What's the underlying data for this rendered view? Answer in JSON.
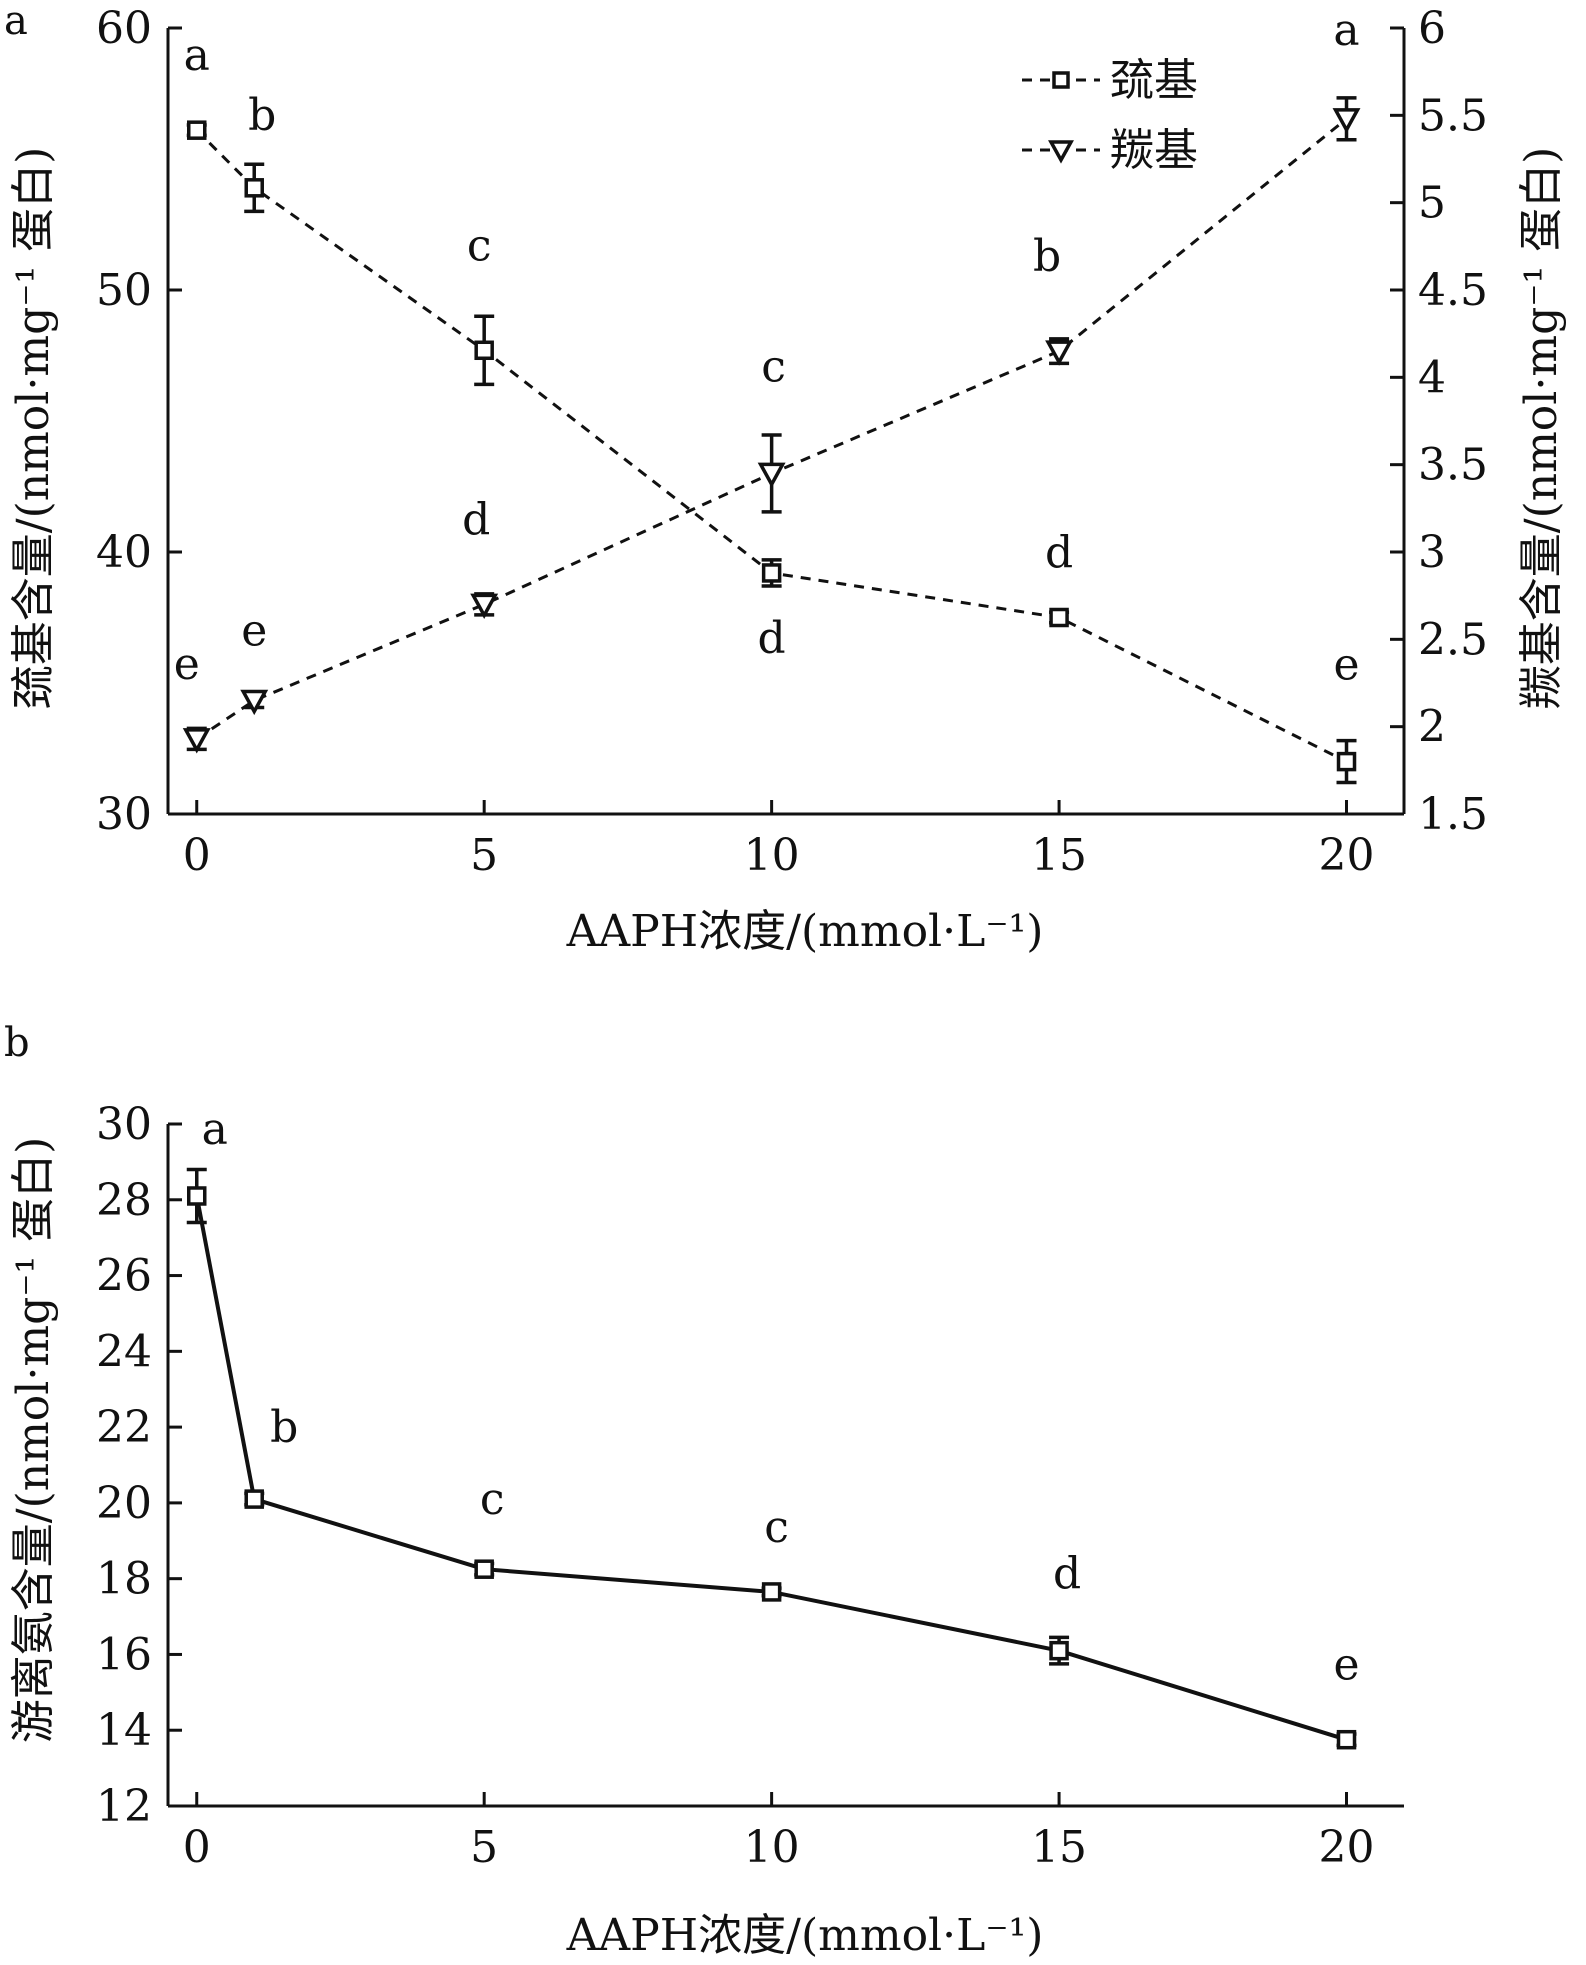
{
  "chart_data": [
    {
      "panel": "a",
      "type": "line",
      "xlabel": "AAPH浓度/(mmol·L⁻¹)",
      "ylabel": "巯基含量/(nmol·mg⁻¹ 蛋白)",
      "ylabel_right": "羰基含量/(nmol·mg⁻¹ 蛋白)",
      "xlim": [
        -0.5,
        21
      ],
      "ylim": [
        30,
        60
      ],
      "ylim_right": [
        1.5,
        6
      ],
      "x_ticks": [
        "0",
        "5",
        "10",
        "15",
        "20"
      ],
      "y_ticks": [
        "30",
        "40",
        "50",
        "60"
      ],
      "y_ticks_right": [
        "1.5",
        "2",
        "2.5",
        "3",
        "3.5",
        "4",
        "4.5",
        "5",
        "5.5",
        "6"
      ],
      "legend_position": "top-right",
      "grid": false,
      "x": [
        0,
        1,
        5,
        10,
        15,
        20
      ],
      "series": [
        {
          "name": "巯基",
          "axis": "left",
          "marker": "square",
          "line": "dashed",
          "values": [
            56.1,
            53.9,
            47.7,
            39.2,
            37.5,
            32.0
          ],
          "errors": [
            0.2,
            0.9,
            1.3,
            0.5,
            0.2,
            0.8
          ],
          "significance": [
            "a",
            "b",
            "c",
            "d",
            "d",
            "e"
          ]
        },
        {
          "name": "羰基",
          "axis": "right",
          "marker": "triangle-down",
          "line": "dashed",
          "values": [
            1.93,
            2.15,
            2.7,
            3.45,
            4.15,
            5.48
          ],
          "errors": [
            0.06,
            0.04,
            0.06,
            0.22,
            0.07,
            0.12
          ],
          "significance": [
            "e",
            "e",
            "d",
            "c",
            "b",
            "a"
          ]
        }
      ]
    },
    {
      "panel": "b",
      "type": "line",
      "xlabel": "AAPH浓度/(mmol·L⁻¹)",
      "ylabel": "游离氨含量/(nmol·mg⁻¹ 蛋白)",
      "xlim": [
        -0.5,
        21
      ],
      "ylim": [
        12,
        30
      ],
      "x_ticks": [
        "0",
        "5",
        "10",
        "15",
        "20"
      ],
      "y_ticks": [
        "12",
        "14",
        "16",
        "18",
        "20",
        "22",
        "24",
        "26",
        "28",
        "30"
      ],
      "grid": false,
      "x": [
        0,
        1,
        5,
        10,
        15,
        20
      ],
      "series": [
        {
          "marker": "square",
          "line": "solid",
          "values": [
            28.1,
            20.1,
            18.25,
            17.65,
            16.1,
            13.75
          ],
          "errors": [
            0.7,
            0.15,
            0.15,
            0.1,
            0.35,
            0.15
          ],
          "significance": [
            "a",
            "b",
            "c",
            "c",
            "d",
            "e"
          ]
        }
      ]
    }
  ]
}
